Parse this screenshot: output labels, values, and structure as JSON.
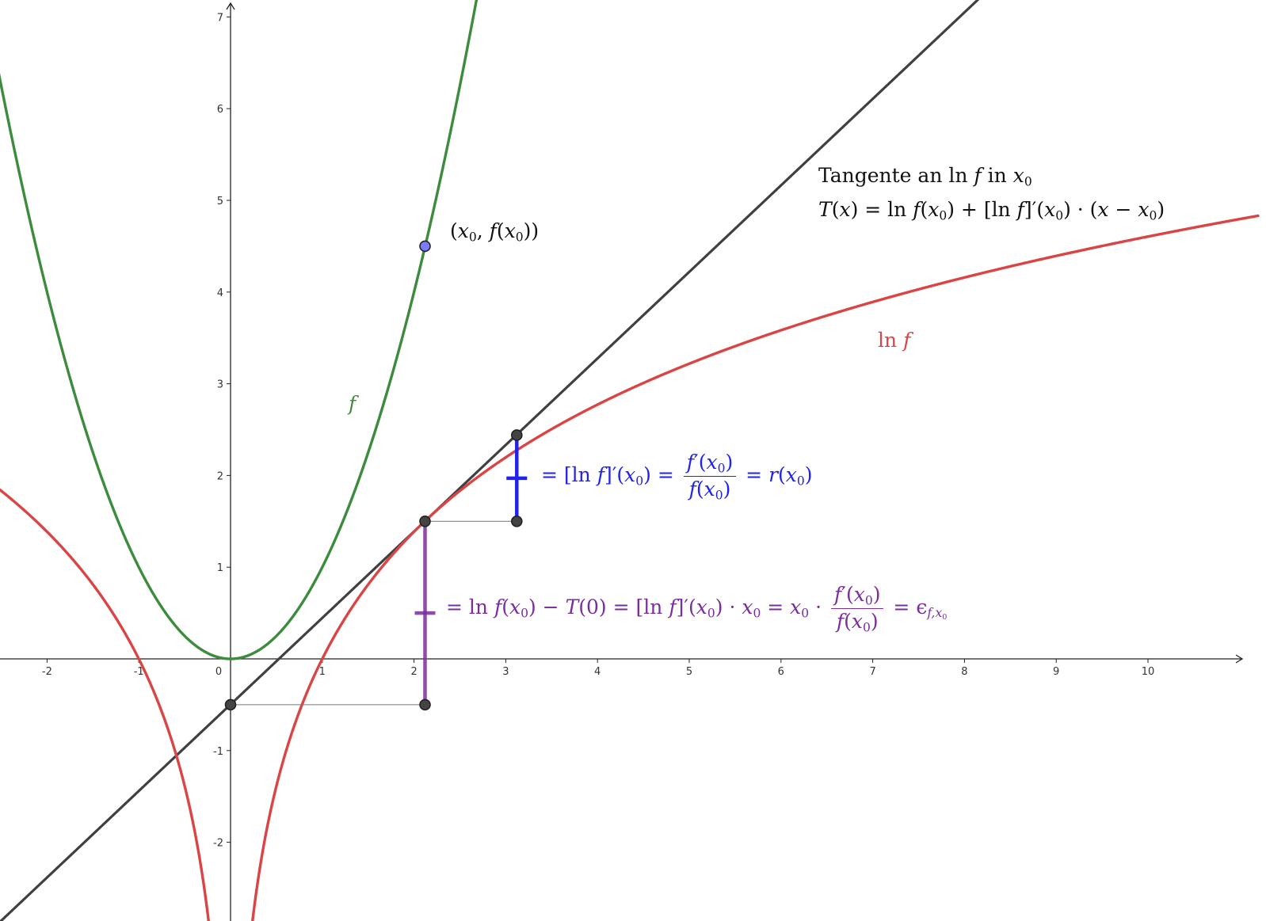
{
  "chart_data": {
    "type": "line",
    "title": "",
    "xlabel": "",
    "ylabel": "",
    "xlim": [
      -2.5,
      11
    ],
    "ylim": [
      -2.7,
      7.2
    ],
    "xticks": [
      "-2",
      "-1",
      "0",
      "1",
      "2",
      "3",
      "4",
      "5",
      "6",
      "7",
      "8",
      "9",
      "10"
    ],
    "yticks": [
      "-2",
      "-1",
      "1",
      "2",
      "3",
      "4",
      "5",
      "6",
      "7"
    ],
    "grid": false,
    "x0": 2.12,
    "series": [
      {
        "name": "f",
        "expression": "f(x) = x^2",
        "color": "#3d8b3d"
      },
      {
        "name": "ln f",
        "expression": "ln f(x) = ln(x^2)",
        "color": "#db4444"
      },
      {
        "name": "T",
        "expression": "T(x) = ln f(x0) + [ln f]'(x0)·(x − x0)",
        "color": "#404040"
      }
    ],
    "points": {
      "on_f": {
        "x": 2.12,
        "y": 4.5
      },
      "on_ln_f": {
        "x": 2.12,
        "y": 1.5
      },
      "step_end": {
        "x": 3.12,
        "y": 1.5
      },
      "tangent_at_step": {
        "x": 3.12,
        "y": 2.44
      },
      "tangent_at_0": {
        "x": 0,
        "y": -0.5
      },
      "projection": {
        "x": 2.12,
        "y": -0.5
      }
    }
  },
  "labels": {
    "f_label": "f",
    "ln_label_ln": "ln",
    "ln_label_f": "f",
    "point_open": "(",
    "point_x": "x",
    "point_sub": "0",
    "point_mid": ", ",
    "point_f": "f",
    "point_paren": "(",
    "point_x2": "x",
    "point_sub2": "0",
    "point_close": "))",
    "tangent_title_prefix": "Tangente an ",
    "tangent_title_ln": "ln",
    "tangent_title_f": "f",
    "tangent_title_in": " in ",
    "tangent_title_x": "x",
    "tangent_title_sub": "0",
    "tangent_formula_1": "T",
    "tangent_formula_2": "(",
    "tangent_formula_3": "x",
    "tangent_formula_4": ") = ln ",
    "tangent_formula_5": "f",
    "tangent_formula_6": "(",
    "tangent_formula_7": "x",
    "tangent_formula_8": "0",
    "tangent_formula_9": ") + [ln ",
    "tangent_formula_10": "f",
    "tangent_formula_11": "]′(",
    "tangent_formula_12": "x",
    "tangent_formula_13": "0",
    "tangent_formula_14": ") · (",
    "tangent_formula_15": "x",
    "tangent_formula_16": " − ",
    "tangent_formula_17": "x",
    "tangent_formula_18": "0",
    "tangent_formula_19": ")",
    "blue_eq_1": "= [ln ",
    "blue_eq_2": "f",
    "blue_eq_3": "]′(",
    "blue_eq_4": "x",
    "blue_eq_5": "0",
    "blue_eq_6": ") =",
    "blue_num_1": "f",
    "blue_num_2": "′(",
    "blue_num_3": "x",
    "blue_num_4": "0",
    "blue_num_5": ")",
    "blue_den_1": "f",
    "blue_den_2": "(",
    "blue_den_3": "x",
    "blue_den_4": "0",
    "blue_den_5": ")",
    "blue_eq_7": "= ",
    "blue_eq_8": "r",
    "blue_eq_9": "(",
    "blue_eq_10": "x",
    "blue_eq_11": "0",
    "blue_eq_12": ")",
    "purple_eq_1": "= ln ",
    "purple_eq_2": "f",
    "purple_eq_3": "(",
    "purple_eq_4": "x",
    "purple_eq_5": "0",
    "purple_eq_6": ") − ",
    "purple_eq_7": "T",
    "purple_eq_8": "(0) = [ln ",
    "purple_eq_9": "f",
    "purple_eq_10": "]′(",
    "purple_eq_11": "x",
    "purple_eq_12": "0",
    "purple_eq_13": ") · ",
    "purple_eq_14": "x",
    "purple_eq_15": "0",
    "purple_eq_16": " = ",
    "purple_eq_17": "x",
    "purple_eq_18": "0",
    "purple_eq_19": " ·",
    "purple_num_1": "f",
    "purple_num_2": "′(",
    "purple_num_3": "x",
    "purple_num_4": "0",
    "purple_num_5": ")",
    "purple_den_1": "f",
    "purple_den_2": "(",
    "purple_den_3": "x",
    "purple_den_4": "0",
    "purple_den_5": ")",
    "purple_eq_20": "= ϵ",
    "purple_eq_21": "f,x",
    "purple_eq_22": "0"
  },
  "colors": {
    "f": "#3d8b3d",
    "ln_f": "#db4444",
    "tangent": "#404040",
    "blue": "#2222ee",
    "purple": "#7a2d9c",
    "point_blue": "#7b7bff",
    "point_dark": "#444444"
  }
}
